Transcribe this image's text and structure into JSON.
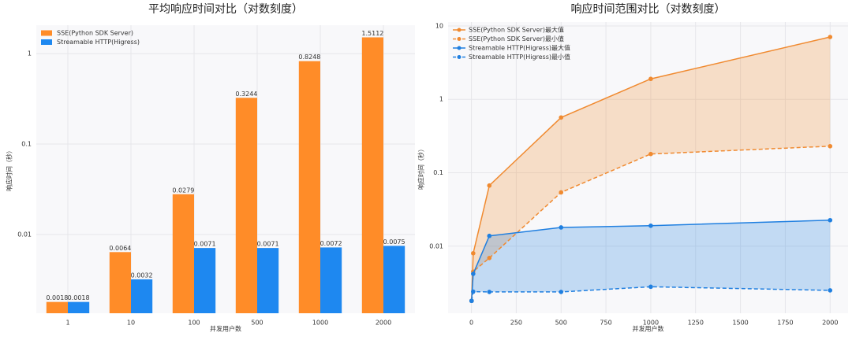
{
  "chart_data": [
    {
      "type": "bar",
      "title": "平均响应时间对比（对数刻度）",
      "x_label": "并发用户数",
      "y_label": "响应时间（秒）",
      "categories": [
        "1",
        "10",
        "100",
        "500",
        "1000",
        "2000"
      ],
      "series": [
        {
          "name": "SSE(Python SDK Server)",
          "color": "#ff8c28",
          "values": [
            0.0018,
            0.0064,
            0.0279,
            0.3244,
            0.8248,
            1.5112
          ]
        },
        {
          "name": "Streamable HTTP(Higress)",
          "color": "#1e88f0",
          "values": [
            0.0018,
            0.0032,
            0.0071,
            0.0071,
            0.0072,
            0.0075
          ]
        }
      ],
      "y_scale": "log",
      "ylim": [
        0.00135,
        2.06
      ],
      "yticks": [
        0.01,
        0.1,
        1
      ],
      "grid": true,
      "legend": "upper left",
      "data_labels": true
    },
    {
      "type": "line",
      "title": "响应时间范围对比（对数刻度）",
      "x_label": "并发用户数",
      "y_label": "响应时间（秒）",
      "x": [
        1,
        10,
        100,
        500,
        1000,
        2000
      ],
      "series": [
        {
          "name": "SSE(Python SDK Server)最大值",
          "color": "#f08a30",
          "dashed": false,
          "values": [
            0.0018,
            0.008,
            0.067,
            0.566,
            1.9,
            7.07
          ]
        },
        {
          "name": "SSE(Python SDK Server)最小值",
          "color": "#f08a30",
          "dashed": true,
          "values": [
            0.0018,
            0.0045,
            0.0069,
            0.054,
            0.18,
            0.23
          ]
        },
        {
          "name": "Streamable HTTP(Higress)最大值",
          "color": "#1f7fe0",
          "dashed": false,
          "values": [
            0.0018,
            0.0042,
            0.0138,
            0.018,
            0.019,
            0.0226
          ]
        },
        {
          "name": "Streamable HTTP(Higress)最小值",
          "color": "#1f7fe0",
          "dashed": true,
          "values": [
            0.0018,
            0.0024,
            0.00238,
            0.00238,
            0.0028,
            0.0025
          ]
        }
      ],
      "fill_between": [
        [
          0,
          1
        ],
        [
          2,
          3
        ]
      ],
      "y_scale": "log",
      "xlim": [
        -130,
        2100
      ],
      "ylim": [
        0.00122,
        11.3
      ],
      "xticks": [
        0,
        250,
        500,
        750,
        1000,
        1250,
        1500,
        1750,
        2000
      ],
      "yticks": [
        0.01,
        0.1,
        1,
        10
      ],
      "grid": true,
      "legend": "upper left"
    }
  ]
}
